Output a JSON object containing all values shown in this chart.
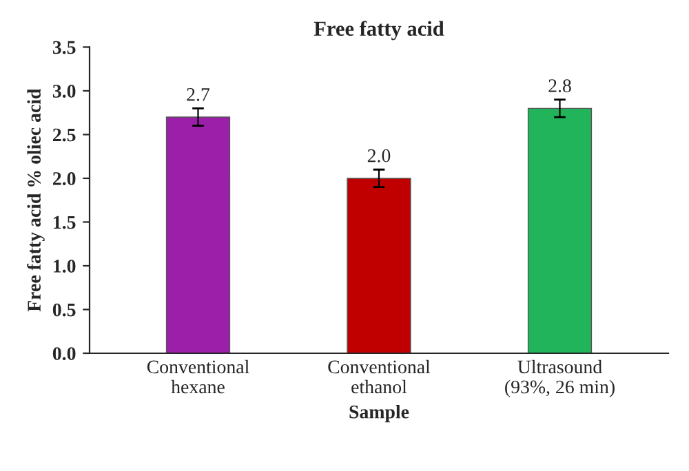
{
  "chart_data": {
    "type": "bar",
    "title": "Free fatty acid",
    "xlabel": "Sample",
    "ylabel": "Free fatty acid % oliec acid",
    "categories": [
      "Conventional\nhexane",
      "Conventional\nethanol",
      "Ultrasound\n(93%, 26 min)"
    ],
    "values": [
      2.7,
      2.0,
      2.8
    ],
    "colors": [
      "#9b1fa8",
      "#c00000",
      "#22b45a"
    ],
    "errors": [
      0.1,
      0.1,
      0.1
    ],
    "value_labels": [
      "2.7",
      "2.0",
      "2.8"
    ],
    "ylim": [
      0,
      3.5
    ],
    "yticks": [
      {
        "value": 0,
        "label": "0.0"
      },
      {
        "value": 0.5,
        "label": "0.5"
      },
      {
        "value": 1,
        "label": "1.0"
      },
      {
        "value": 1.5,
        "label": "1.5"
      },
      {
        "value": 2,
        "label": "2.0"
      },
      {
        "value": 2.5,
        "label": "2.5"
      },
      {
        "value": 3,
        "label": "3.0"
      },
      {
        "value": 3.5,
        "label": "3.5"
      }
    ],
    "grid": false,
    "legend": false
  }
}
